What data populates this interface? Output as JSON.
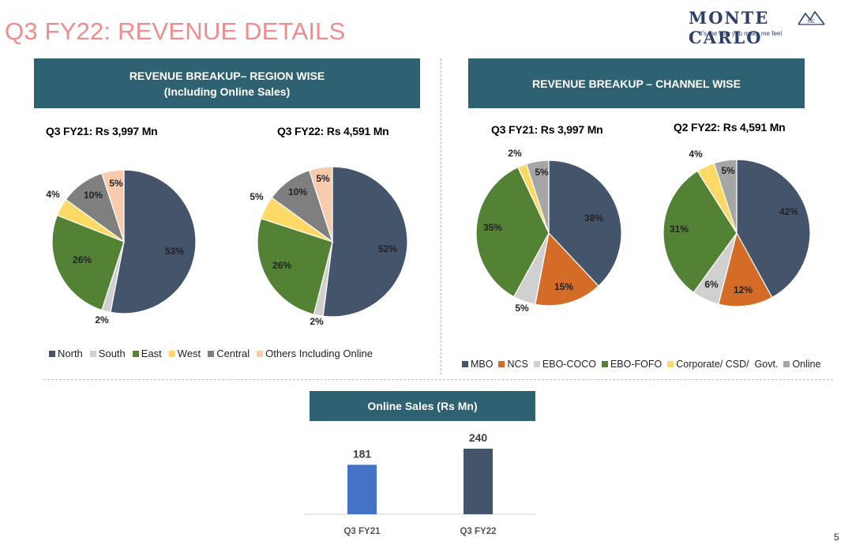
{
  "header": {
    "title": "Q3 FY22: REVENUE DETAILS",
    "logo": {
      "name": "MONTE CARLO",
      "tagline": "It's the way you make me feel",
      "mark": "MC"
    }
  },
  "sections": {
    "region_banner": {
      "line1": "REVENUE BREAKUP– REGION WISE",
      "line2": "(Including Online Sales)"
    },
    "channel_banner": {
      "line1": "REVENUE BREAKUP – CHANNEL WISE"
    },
    "online_banner": {
      "label": "Online Sales (Rs Mn)"
    }
  },
  "colors": {
    "North": "#44546a",
    "South": "#d0d0d0",
    "East": "#548235",
    "West": "#ffd965",
    "Central": "#7f7f7f",
    "Others Including Online": "#f8cbad",
    "MBO": "#44546a",
    "NCS": "#d46b26",
    "EBO-COCO": "#d0d0d0",
    "EBO-FOFO": "#548235",
    "Corporate/ CSD/  Govt.": "#ffd965",
    "Online": "#a6a6a6",
    "bar_fy21": "#4472c4",
    "bar_fy22": "#44546a"
  },
  "legends": {
    "region": [
      "North",
      "South",
      "East",
      "West",
      "Central",
      "Others Including Online"
    ],
    "channel": [
      "MBO",
      "NCS",
      "EBO-COCO",
      "EBO-FOFO",
      "Corporate/ CSD/  Govt.",
      "Online"
    ]
  },
  "page_number": "5",
  "chart_data": [
    {
      "id": "region-fy21",
      "type": "pie",
      "title": "Q3 FY21: Rs 3,997 Mn",
      "labels": [
        "North",
        "South",
        "East",
        "West",
        "Central",
        "Others Including Online"
      ],
      "values": [
        53,
        2,
        26,
        4,
        10,
        5
      ],
      "data_labels": [
        "53%",
        "2%",
        "26%",
        "4%",
        "10%",
        "5%"
      ]
    },
    {
      "id": "region-fy22",
      "type": "pie",
      "title": "Q3 FY22: Rs  4,591 Mn",
      "labels": [
        "North",
        "South",
        "East",
        "West",
        "Central",
        "Others Including Online"
      ],
      "values": [
        52,
        2,
        26,
        5,
        10,
        5
      ],
      "data_labels": [
        "52%",
        "2%",
        "26%",
        "5%",
        "10%",
        "5%"
      ]
    },
    {
      "id": "channel-fy21",
      "type": "pie",
      "title": "Q3 FY21: Rs 3,997 Mn",
      "labels": [
        "MBO",
        "NCS",
        "EBO-COCO",
        "EBO-FOFO",
        "Corporate/ CSD/  Govt.",
        "Online"
      ],
      "values": [
        38,
        15,
        5,
        35,
        2,
        5
      ],
      "data_labels": [
        "38%",
        "15%",
        "5%",
        "35%",
        "2%",
        "5%"
      ]
    },
    {
      "id": "channel-fy22",
      "type": "pie",
      "title": "Q2 FY22: Rs 4,591 Mn",
      "labels": [
        "MBO",
        "NCS",
        "EBO-COCO",
        "EBO-FOFO",
        "Corporate/ CSD/  Govt.",
        "Online"
      ],
      "values": [
        42,
        12,
        6,
        31,
        4,
        5
      ],
      "data_labels": [
        "42%",
        "12%",
        "6%",
        "31%",
        "4%",
        "5%"
      ]
    },
    {
      "id": "online-sales",
      "type": "bar",
      "title": "Online Sales (Rs Mn)",
      "categories": [
        "Q3 FY21",
        "Q3 FY22"
      ],
      "values": [
        181,
        240
      ],
      "data_labels": [
        "181",
        "240"
      ],
      "ylim": [
        0,
        260
      ]
    }
  ]
}
